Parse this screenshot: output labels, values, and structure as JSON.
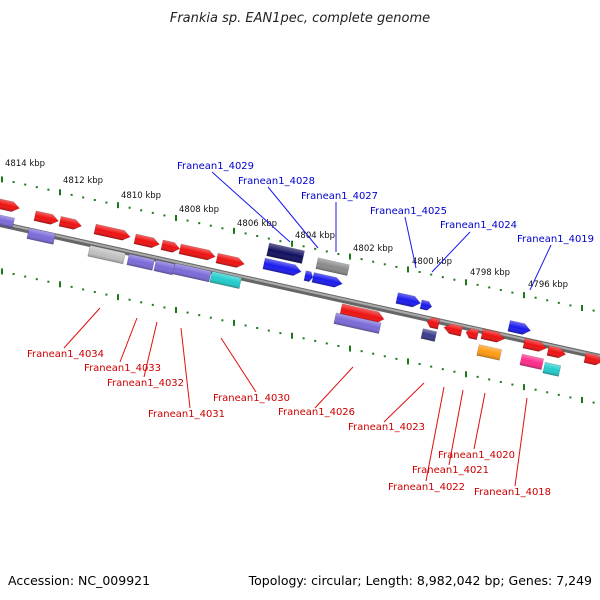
{
  "title": "Frankia sp. EAN1pec, complete genome",
  "footer": {
    "accession": "Accession: NC_009921",
    "stats": "Topology: circular; Length: 8,982,042 bp; Genes: 7,249"
  },
  "scale": {
    "ticks": [
      "4814 kbp",
      "4812 kbp",
      "4810 kbp",
      "4808 kbp",
      "4806 kbp",
      "4804 kbp",
      "4802 kbp",
      "4800 kbp",
      "4798 kbp",
      "4796 kbp"
    ]
  },
  "labels": {
    "top": [
      "Franean1_4029",
      "Franean1_4028",
      "Franean1_4027",
      "Franean1_4025",
      "Franean1_4024",
      "Franean1_4019"
    ],
    "bottom": [
      "Franean1_4034",
      "Franean1_4033",
      "Franean1_4032",
      "Franean1_4031",
      "Franean1_4030",
      "Franean1_4026",
      "Franean1_4023",
      "Franean1_4022",
      "Franean1_4021",
      "Franean1_4020",
      "Franean1_4018"
    ]
  },
  "colors": {
    "backbone": "#888888",
    "top_ruler": "#1a7a1a",
    "bottom_ruler": "#1a7a1a",
    "top_label": "#0000cc",
    "bottom_label": "#cc0000",
    "red": "#ee1111",
    "blue": "#1a1aee",
    "navy": "#101060",
    "lavender": "#7a6ad8",
    "cyan": "#22cccc",
    "gray": "#8a8a8a",
    "lightgray": "#c0c0c0",
    "orange": "#ff9a10",
    "pink": "#ff2a8a",
    "darkpurple": "#3a3a8a"
  }
}
